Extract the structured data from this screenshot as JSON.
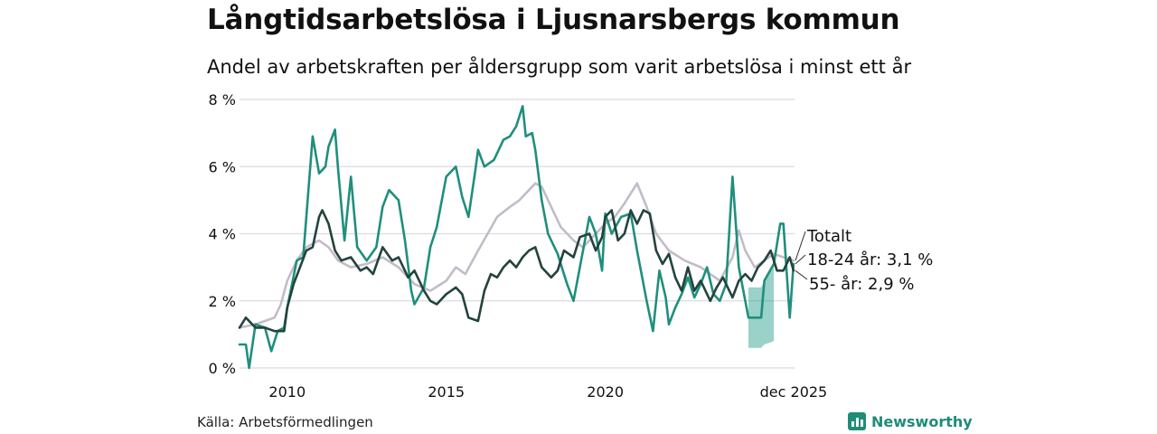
{
  "header": {
    "title": "Långtidsarbetslösa i Ljusnarsbergs kommun",
    "subtitle": "Andel av arbetskraften per åldersgrupp som varit arbetslösa i minst ett år"
  },
  "footer": {
    "source": "Källa: Arbetsförmedlingen",
    "brand": "Newsworthy"
  },
  "chart_data": {
    "type": "line",
    "title": "Långtidsarbetslösa i Ljusnarsbergs kommun",
    "xlabel": "",
    "ylabel": "",
    "xlim": [
      2008.5,
      2025.95
    ],
    "ylim": [
      0,
      8
    ],
    "grid": true,
    "y_ticks": [
      0,
      2,
      4,
      6,
      8
    ],
    "y_tick_labels": [
      "0 %",
      "2 %",
      "4 %",
      "6 %",
      "8 %"
    ],
    "x_ticks": [
      2010,
      2015,
      2020,
      2025.92
    ],
    "x_tick_labels": [
      "2010",
      "2015",
      "2020",
      "dec 2025"
    ],
    "colors": {
      "totalt": "#c2bcc8",
      "youth": "#1f8f7d",
      "senior": "#23433d",
      "band": "#1f9a85",
      "grid": "#dcdcdc"
    },
    "series": [
      {
        "name": "Totalt",
        "label": "Totalt",
        "color": "#c2bcc8",
        "x": [
          2008.5,
          2009.0,
          2009.3,
          2009.6,
          2009.8,
          2010.0,
          2010.3,
          2010.6,
          2011.0,
          2011.3,
          2011.6,
          2012.0,
          2012.5,
          2013.0,
          2013.5,
          2014.0,
          2014.5,
          2015.0,
          2015.3,
          2015.6,
          2016.0,
          2016.3,
          2016.6,
          2017.0,
          2017.3,
          2017.6,
          2017.8,
          2018.0,
          2018.3,
          2018.6,
          2019.0,
          2019.3,
          2019.6,
          2020.0,
          2020.3,
          2020.6,
          2021.0,
          2021.3,
          2021.6,
          2022.0,
          2022.5,
          2023.0,
          2023.3,
          2023.6,
          2024.0,
          2024.2,
          2024.4,
          2024.7,
          2025.0,
          2025.3,
          2025.6,
          2025.92
        ],
        "values": [
          1.2,
          1.3,
          1.4,
          1.5,
          1.9,
          2.6,
          3.2,
          3.6,
          3.8,
          3.6,
          3.2,
          3.0,
          3.1,
          3.3,
          3.0,
          2.5,
          2.3,
          2.6,
          3.0,
          2.8,
          3.5,
          4.0,
          4.5,
          4.8,
          5.0,
          5.3,
          5.5,
          5.4,
          4.8,
          4.2,
          3.8,
          3.6,
          3.9,
          4.3,
          4.5,
          4.9,
          5.5,
          4.8,
          4.0,
          3.5,
          3.2,
          3.0,
          2.8,
          2.6,
          3.3,
          4.1,
          3.5,
          3.0,
          3.2,
          3.4,
          3.3,
          3.2
        ]
      },
      {
        "name": "18-24 år",
        "label": "18-24 år: 3,1 %",
        "color": "#1f8f7d",
        "x": [
          2008.5,
          2008.7,
          2008.8,
          2009.0,
          2009.3,
          2009.5,
          2009.7,
          2009.9,
          2010.0,
          2010.3,
          2010.5,
          2010.6,
          2010.8,
          2011.0,
          2011.2,
          2011.3,
          2011.5,
          2011.6,
          2011.8,
          2012.0,
          2012.2,
          2012.5,
          2012.8,
          2013.0,
          2013.2,
          2013.5,
          2013.7,
          2013.9,
          2014.0,
          2014.3,
          2014.5,
          2014.7,
          2015.0,
          2015.3,
          2015.5,
          2015.7,
          2015.9,
          2016.0,
          2016.2,
          2016.5,
          2016.8,
          2017.0,
          2017.2,
          2017.4,
          2017.5,
          2017.7,
          2017.8,
          2018.0,
          2018.2,
          2018.5,
          2018.8,
          2019.0,
          2019.3,
          2019.5,
          2019.7,
          2019.9,
          2020.0,
          2020.2,
          2020.5,
          2020.8,
          2021.0,
          2021.3,
          2021.5,
          2021.7,
          2021.9,
          2022.0,
          2022.2,
          2022.4,
          2022.6,
          2022.8,
          2023.0,
          2023.2,
          2023.4,
          2023.6,
          2023.8,
          2024.0,
          2024.2,
          2024.4,
          2024.5,
          2024.7,
          2024.9,
          2025.0,
          2025.3,
          2025.5,
          2025.6,
          2025.8,
          2025.92
        ],
        "values": [
          0.7,
          0.7,
          0.0,
          1.3,
          1.2,
          0.5,
          1.1,
          1.2,
          1.8,
          3.2,
          3.3,
          4.5,
          6.9,
          5.8,
          6.0,
          6.6,
          7.1,
          5.9,
          3.8,
          5.7,
          3.6,
          3.2,
          3.6,
          4.8,
          5.3,
          5.0,
          3.8,
          2.3,
          1.9,
          2.4,
          3.6,
          4.2,
          5.7,
          6.0,
          5.1,
          4.5,
          5.8,
          6.5,
          6.0,
          6.2,
          6.8,
          6.9,
          7.2,
          7.8,
          6.9,
          7.0,
          6.5,
          5.0,
          4.0,
          3.4,
          2.5,
          2.0,
          3.5,
          4.5,
          4.0,
          2.9,
          4.6,
          4.0,
          4.5,
          4.6,
          3.5,
          2.0,
          1.1,
          2.9,
          2.1,
          1.3,
          1.8,
          2.2,
          2.7,
          2.1,
          2.5,
          3.0,
          2.2,
          2.0,
          2.5,
          5.7,
          3.0,
          2.0,
          1.5,
          1.5,
          1.5,
          2.6,
          3.1,
          4.3,
          4.3,
          1.5,
          3.1
        ]
      },
      {
        "name": "55- år",
        "label": "55- år: 2,9 %",
        "color": "#23433d",
        "x": [
          2008.5,
          2008.7,
          2009.0,
          2009.3,
          2009.6,
          2009.9,
          2010.0,
          2010.2,
          2010.4,
          2010.6,
          2010.8,
          2011.0,
          2011.1,
          2011.3,
          2011.5,
          2011.7,
          2012.0,
          2012.3,
          2012.5,
          2012.7,
          2013.0,
          2013.3,
          2013.5,
          2013.8,
          2014.0,
          2014.3,
          2014.5,
          2014.7,
          2015.0,
          2015.3,
          2015.5,
          2015.7,
          2016.0,
          2016.2,
          2016.4,
          2016.6,
          2016.8,
          2017.0,
          2017.2,
          2017.4,
          2017.6,
          2017.8,
          2018.0,
          2018.3,
          2018.5,
          2018.7,
          2019.0,
          2019.2,
          2019.5,
          2019.7,
          2019.9,
          2020.0,
          2020.2,
          2020.4,
          2020.6,
          2020.8,
          2021.0,
          2021.2,
          2021.4,
          2021.6,
          2021.8,
          2022.0,
          2022.2,
          2022.4,
          2022.6,
          2022.8,
          2023.0,
          2023.3,
          2023.5,
          2023.7,
          2024.0,
          2024.2,
          2024.4,
          2024.6,
          2024.8,
          2025.0,
          2025.2,
          2025.4,
          2025.6,
          2025.8,
          2025.92
        ],
        "values": [
          1.2,
          1.5,
          1.2,
          1.2,
          1.1,
          1.1,
          1.8,
          2.5,
          3.0,
          3.5,
          3.6,
          4.5,
          4.7,
          4.3,
          3.5,
          3.2,
          3.3,
          2.9,
          3.0,
          2.8,
          3.6,
          3.2,
          3.3,
          2.7,
          2.9,
          2.3,
          2.0,
          1.9,
          2.2,
          2.4,
          2.2,
          1.5,
          1.4,
          2.3,
          2.8,
          2.7,
          3.0,
          3.2,
          3.0,
          3.3,
          3.5,
          3.6,
          3.0,
          2.7,
          2.9,
          3.5,
          3.3,
          3.9,
          4.0,
          3.5,
          3.9,
          4.5,
          4.7,
          3.8,
          4.0,
          4.7,
          4.3,
          4.7,
          4.6,
          3.5,
          3.1,
          3.4,
          2.7,
          2.3,
          3.0,
          2.3,
          2.6,
          2.0,
          2.4,
          2.7,
          2.1,
          2.6,
          2.8,
          2.6,
          3.0,
          3.2,
          3.5,
          2.9,
          2.9,
          3.3,
          2.9
        ]
      }
    ],
    "band": {
      "name": "18-24 år osäkerhet",
      "x": [
        2024.5,
        2024.7,
        2024.9,
        2025.0,
        2025.3
      ],
      "upper": [
        2.4,
        2.4,
        2.4,
        2.6,
        3.1
      ],
      "lower": [
        0.6,
        0.6,
        0.6,
        0.7,
        0.8
      ]
    },
    "annotations": [
      {
        "text": "Totalt",
        "series": "Totalt"
      },
      {
        "text": "18-24 år: 3,1 %",
        "series": "18-24 år"
      },
      {
        "text": "55- år: 2,9 %",
        "series": "55- år"
      }
    ]
  }
}
